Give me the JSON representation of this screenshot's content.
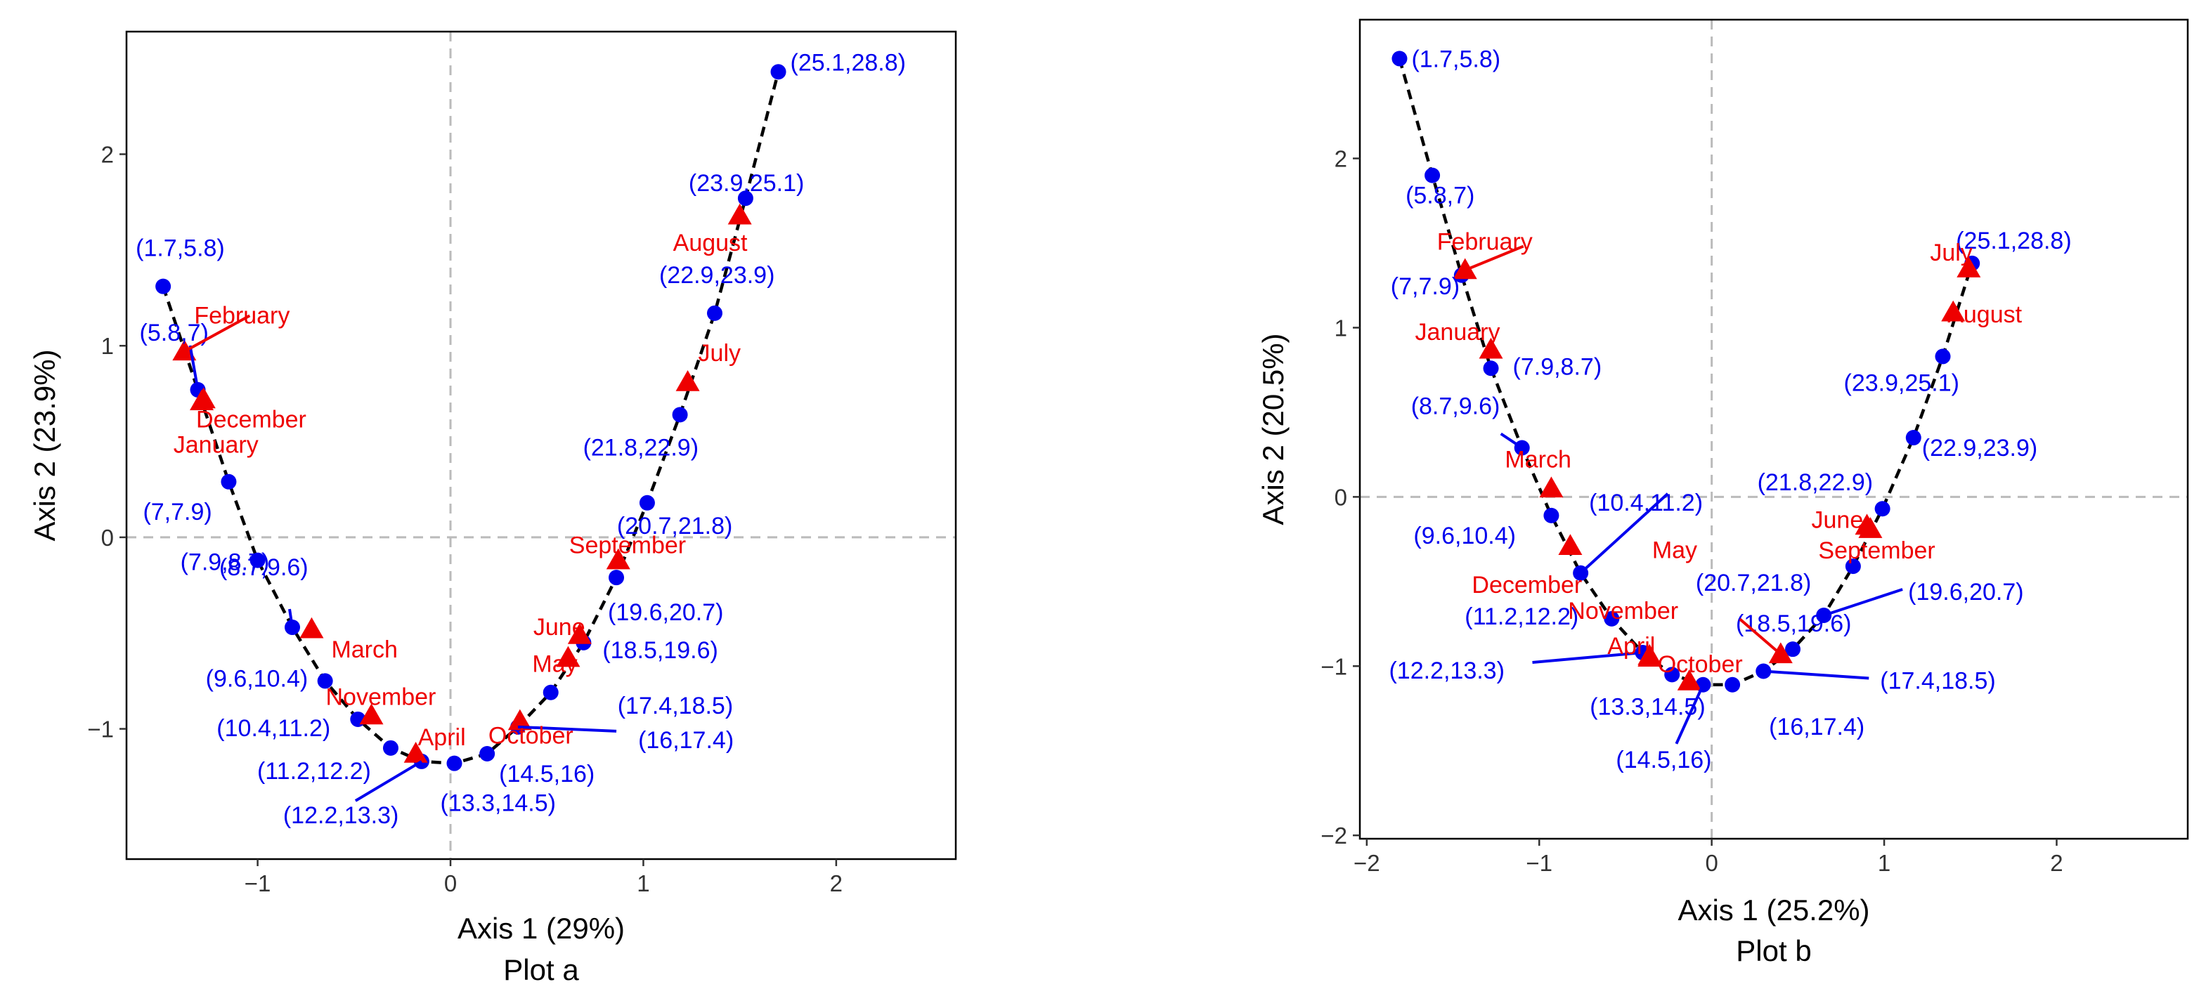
{
  "colors": {
    "point": "#0000ee",
    "month": "#ee0000",
    "grid": "#bbbbbb",
    "axis": "#333333",
    "curve": "#000000"
  },
  "chart_data": [
    {
      "type": "scatter",
      "caption": "Plot a",
      "xlabel": "Axis 1 (29%)",
      "ylabel": "Axis 2 (23.9%)",
      "xlim": [
        -1.68,
        2.62
      ],
      "ylim": [
        -1.68,
        2.64
      ],
      "xticks": [
        -1,
        0,
        1,
        2
      ],
      "xtick_labels": [
        "−1",
        "0",
        "1",
        "2"
      ],
      "yticks": [
        -1,
        0,
        1,
        2
      ],
      "ytick_labels": [
        "−1",
        "0",
        "1",
        "2"
      ],
      "reference_lines": {
        "x": 0,
        "y": 0
      },
      "points": [
        {
          "label": "(1.7,5.8)",
          "x": -1.49,
          "y": 1.31
        },
        {
          "label": "(5.8,7)",
          "x": -1.31,
          "y": 0.77
        },
        {
          "label": "(7,7.9)",
          "x": -1.15,
          "y": 0.29
        },
        {
          "label": "(7.9,8.7)",
          "x": -1.0,
          "y": -0.12
        },
        {
          "label": "(8.7,9.6)",
          "x": -0.82,
          "y": -0.47
        },
        {
          "label": "(9.6,10.4)",
          "x": -0.65,
          "y": -0.75
        },
        {
          "label": "(10.4,11.2)",
          "x": -0.48,
          "y": -0.95
        },
        {
          "label": "(11.2,12.2)",
          "x": -0.31,
          "y": -1.1
        },
        {
          "label": "(12.2,13.3)",
          "x": -0.15,
          "y": -1.17
        },
        {
          "label": "(13.3,14.5)",
          "x": 0.02,
          "y": -1.18
        },
        {
          "label": "(14.5,16)",
          "x": 0.19,
          "y": -1.13
        },
        {
          "label": "(16,17.4)",
          "x": 0.35,
          "y": -0.99
        },
        {
          "label": "(17.4,18.5)",
          "x": 0.52,
          "y": -0.81
        },
        {
          "label": "(18.5,19.6)",
          "x": 0.69,
          "y": -0.55
        },
        {
          "label": "(19.6,20.7)",
          "x": 0.86,
          "y": -0.21
        },
        {
          "label": "(20.7,21.8)",
          "x": 1.02,
          "y": 0.18
        },
        {
          "label": "(21.8,22.9)",
          "x": 1.19,
          "y": 0.64
        },
        {
          "label": "(22.9,23.9)",
          "x": 1.37,
          "y": 1.17
        },
        {
          "label": "(23.9,25.1)",
          "x": 1.53,
          "y": 1.77
        },
        {
          "label": "(25.1,28.8)",
          "x": 1.7,
          "y": 2.43
        }
      ],
      "months": [
        {
          "label": "January",
          "x": -1.28,
          "y": 0.72
        },
        {
          "label": "February",
          "x": -1.38,
          "y": 0.97
        },
        {
          "label": "March",
          "x": -0.72,
          "y": -0.48
        },
        {
          "label": "April",
          "x": -0.18,
          "y": -1.13
        },
        {
          "label": "May",
          "x": 0.61,
          "y": -0.63
        },
        {
          "label": "June",
          "x": 0.67,
          "y": -0.51
        },
        {
          "label": "July",
          "x": 1.23,
          "y": 0.81
        },
        {
          "label": "August",
          "x": 1.5,
          "y": 1.68
        },
        {
          "label": "September",
          "x": 0.87,
          "y": -0.12
        },
        {
          "label": "October",
          "x": 0.36,
          "y": -0.96
        },
        {
          "label": "November",
          "x": -0.41,
          "y": -0.93
        },
        {
          "label": "December",
          "x": -1.29,
          "y": 0.71
        }
      ]
    },
    {
      "type": "scatter",
      "caption": "Plot b",
      "xlabel": "Axis 1 (25.2%)",
      "ylabel": "Axis 2  (20.5%)",
      "xlim": [
        -2.04,
        2.76
      ],
      "ylim": [
        -2.02,
        2.82
      ],
      "xticks": [
        -2,
        -1,
        0,
        1,
        2
      ],
      "xtick_labels": [
        "−2",
        "−1",
        "0",
        "1",
        "2"
      ],
      "yticks": [
        -2,
        -1,
        0,
        1,
        2
      ],
      "ytick_labels": [
        "−2",
        "−1",
        "0",
        "1",
        "2"
      ],
      "reference_lines": {
        "x": 0,
        "y": 0
      },
      "points": [
        {
          "label": "(1.7,5.8)",
          "x": -1.81,
          "y": 2.59
        },
        {
          "label": "(5.8,7)",
          "x": -1.62,
          "y": 1.9
        },
        {
          "label": "(7,7.9)",
          "x": -1.45,
          "y": 1.31
        },
        {
          "label": "(7.9,8.7)",
          "x": -1.28,
          "y": 0.76
        },
        {
          "label": "(8.7,9.6)",
          "x": -1.1,
          "y": 0.29
        },
        {
          "label": "(9.6,10.4)",
          "x": -0.93,
          "y": -0.11
        },
        {
          "label": "(10.4,11.2)",
          "x": -0.76,
          "y": -0.45
        },
        {
          "label": "(11.2,12.2)",
          "x": -0.58,
          "y": -0.72
        },
        {
          "label": "(12.2,13.3)",
          "x": -0.4,
          "y": -0.92
        },
        {
          "label": "(13.3,14.5)",
          "x": -0.23,
          "y": -1.05
        },
        {
          "label": "(14.5,16)",
          "x": -0.05,
          "y": -1.11
        },
        {
          "label": "(16,17.4)",
          "x": 0.12,
          "y": -1.11
        },
        {
          "label": "(17.4,18.5)",
          "x": 0.3,
          "y": -1.03
        },
        {
          "label": "(18.5,19.6)",
          "x": 0.47,
          "y": -0.9
        },
        {
          "label": "(19.6,20.7)",
          "x": 0.65,
          "y": -0.7
        },
        {
          "label": "(20.7,21.8)",
          "x": 0.82,
          "y": -0.41
        },
        {
          "label": "(21.8,22.9)",
          "x": 0.99,
          "y": -0.07
        },
        {
          "label": "(22.9,23.9)",
          "x": 1.17,
          "y": 0.35
        },
        {
          "label": "(23.9,25.1)",
          "x": 1.34,
          "y": 0.83
        },
        {
          "label": "(25.1,28.8)",
          "x": 1.51,
          "y": 1.38
        }
      ],
      "months": [
        {
          "label": "January",
          "x": -1.28,
          "y": 0.87
        },
        {
          "label": "February",
          "x": -1.43,
          "y": 1.34
        },
        {
          "label": "March",
          "x": -0.93,
          "y": 0.05
        },
        {
          "label": "April",
          "x": -0.36,
          "y": -0.94
        },
        {
          "label": "May",
          "x": 0.4,
          "y": -0.93
        },
        {
          "label": "June",
          "x": 0.9,
          "y": -0.17
        },
        {
          "label": "July",
          "x": 1.49,
          "y": 1.35
        },
        {
          "label": "August",
          "x": 1.4,
          "y": 1.09
        },
        {
          "label": "September",
          "x": 0.92,
          "y": -0.19
        },
        {
          "label": "October",
          "x": -0.13,
          "y": -1.09
        },
        {
          "label": "November",
          "x": -0.36,
          "y": -0.95
        },
        {
          "label": "December",
          "x": -0.82,
          "y": -0.29
        }
      ]
    }
  ]
}
